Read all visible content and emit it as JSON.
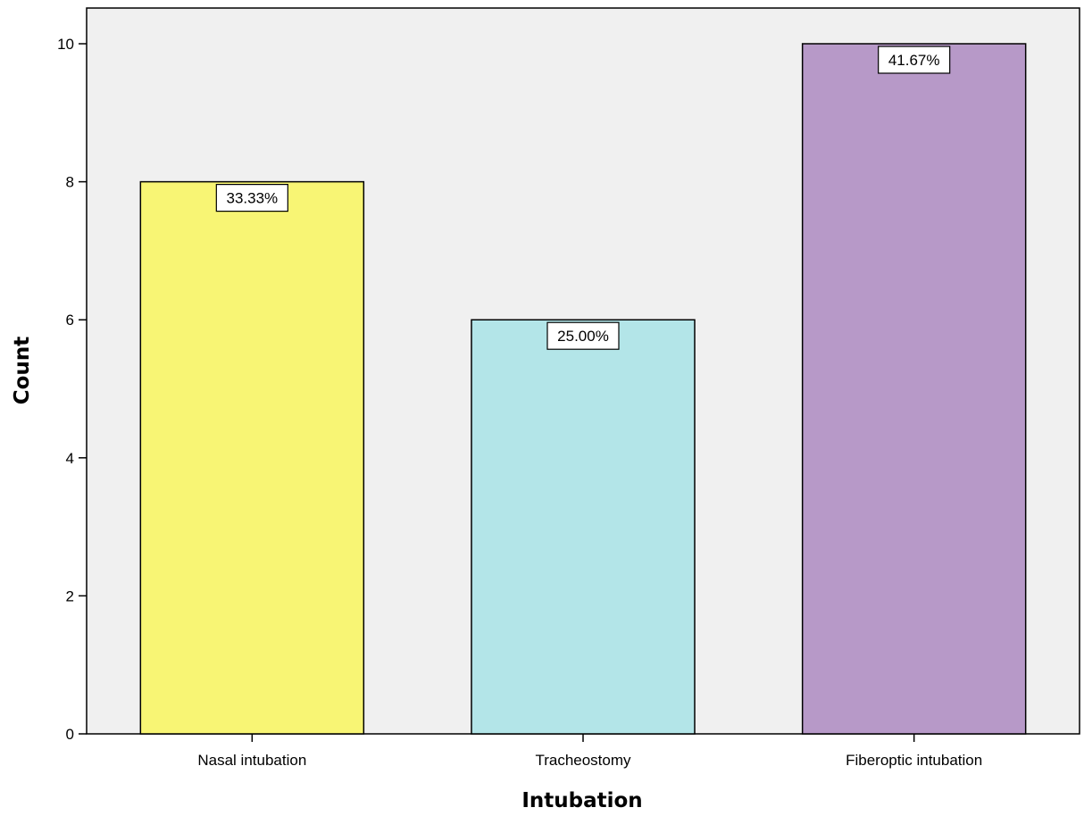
{
  "chart_data": {
    "type": "bar",
    "xlabel": "Intubation",
    "ylabel": "Count",
    "categories": [
      "Nasal intubation",
      "Tracheostomy",
      "Fiberoptic intubation"
    ],
    "values": [
      8,
      6,
      10
    ],
    "data_labels": [
      "33.33%",
      "25.00%",
      "41.67%"
    ],
    "colors": [
      "#f8f574",
      "#b3e5e8",
      "#b799c8"
    ],
    "ylim": [
      0,
      10.5
    ],
    "yticks": [
      0,
      2,
      4,
      6,
      8,
      10
    ],
    "plot_background": "#f0f0f0",
    "grid": false,
    "legend": "none"
  }
}
